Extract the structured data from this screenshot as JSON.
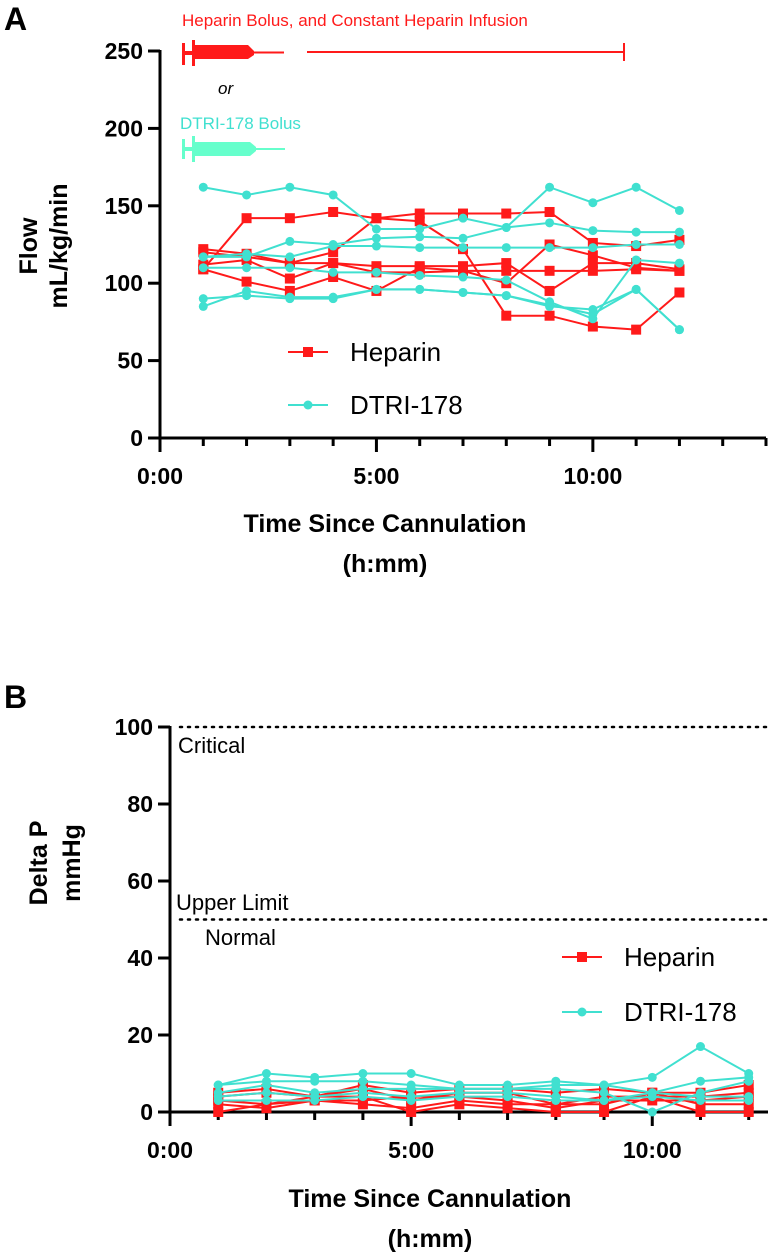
{
  "colors": {
    "heparin": "#ff1a1a",
    "dtri": "#40e0d0",
    "dtri_syringe": "#66ffcc",
    "axis": "#000000"
  },
  "chart_data": [
    {
      "panel": "A",
      "type": "line",
      "xlabel": "Time Since Cannulation",
      "xlabel_unit": "(h:mm)",
      "ylabel": "Flow",
      "ylabel_unit": "mL/kg/min",
      "x_ticks": [
        {
          "value": 0,
          "label": "0:00"
        },
        {
          "value": 5,
          "label": "5:00"
        },
        {
          "value": 10,
          "label": "10:00"
        }
      ],
      "y_ticks": [
        0,
        50,
        100,
        150,
        200,
        250
      ],
      "xlim": [
        0,
        14
      ],
      "ylim": [
        0,
        250
      ],
      "x": [
        1,
        2,
        3,
        4,
        5,
        6,
        7,
        8,
        9,
        10,
        11,
        12
      ],
      "legend": {
        "placement": "bottom-left",
        "entries": [
          "Heparin",
          "DTRI-178"
        ]
      },
      "annotations": {
        "heparin_text": "Heparin Bolus, and Constant Heparin Infusion",
        "or_text": "or",
        "dtri_text": "DTRI-178 Bolus",
        "infusion_end_hour": 12
      },
      "series": [
        {
          "group": "Heparin",
          "values": [
            109,
            142,
            142,
            146,
            142,
            145,
            145,
            145,
            146,
            126,
            124,
            128
          ]
        },
        {
          "group": "Heparin",
          "values": [
            122,
            119,
            113,
            113,
            111,
            111,
            111,
            113,
            95,
            113,
            113,
            109
          ]
        },
        {
          "group": "Heparin",
          "values": [
            120,
            117,
            113,
            120,
            142,
            140,
            122,
            79,
            79,
            72,
            70,
            94
          ]
        },
        {
          "group": "Heparin",
          "values": [
            112,
            115,
            103,
            113,
            107,
            107,
            108,
            100,
            125,
            118,
            110,
            108
          ]
        },
        {
          "group": "Heparin",
          "values": [
            109,
            101,
            95,
            104,
            95,
            110,
            108,
            108,
            108,
            108,
            109,
            108
          ]
        },
        {
          "group": "DTRI-178",
          "values": [
            162,
            157,
            162,
            157,
            135,
            135,
            142,
            136,
            162,
            152,
            162,
            147
          ]
        },
        {
          "group": "DTRI-178",
          "values": [
            117,
            117,
            127,
            125,
            129,
            130,
            129,
            136,
            139,
            134,
            133,
            133
          ]
        },
        {
          "group": "DTRI-178",
          "values": [
            117,
            119,
            117,
            124,
            124,
            123,
            123,
            123,
            123,
            123,
            125,
            125
          ]
        },
        {
          "group": "DTRI-178",
          "values": [
            110,
            110,
            110,
            107,
            107,
            105,
            104,
            102,
            88,
            77,
            115,
            113
          ]
        },
        {
          "group": "DTRI-178",
          "values": [
            85,
            95,
            91,
            91,
            96,
            96,
            94,
            92,
            85,
            83,
            96,
            70
          ]
        },
        {
          "group": "DTRI-178",
          "values": [
            90,
            92,
            90,
            90,
            96,
            96,
            94,
            92,
            86,
            80,
            96,
            70
          ]
        }
      ]
    },
    {
      "panel": "B",
      "type": "line",
      "xlabel": "Time Since Cannulation",
      "xlabel_unit": "(h:mm)",
      "ylabel": "Delta P",
      "ylabel_unit": "mmHg",
      "x_ticks": [
        {
          "value": 0,
          "label": "0:00"
        },
        {
          "value": 5,
          "label": "5:00"
        },
        {
          "value": 10,
          "label": "10:00"
        }
      ],
      "y_ticks": [
        0,
        20,
        40,
        60,
        80,
        100
      ],
      "xlim": [
        0,
        12.4
      ],
      "ylim": [
        0,
        100
      ],
      "x": [
        1,
        2,
        3,
        4,
        5,
        6,
        7,
        8,
        9,
        10,
        11,
        12
      ],
      "legend": {
        "placement": "right",
        "entries": [
          "Heparin",
          "DTRI-178"
        ]
      },
      "reference_lines": [
        {
          "value": 100,
          "labels": [
            "Critical"
          ]
        },
        {
          "value": 50,
          "labels": [
            "Upper Limit",
            "Normal"
          ]
        }
      ],
      "series": [
        {
          "group": "Heparin",
          "values": [
            5,
            6,
            4,
            7,
            5,
            6,
            6,
            5,
            6,
            5,
            5,
            7
          ]
        },
        {
          "group": "Heparin",
          "values": [
            4,
            5,
            4,
            6,
            3,
            5,
            5,
            2,
            4,
            4,
            4,
            5
          ]
        },
        {
          "group": "Heparin",
          "values": [
            3,
            2,
            3,
            3,
            4,
            4,
            3,
            1,
            3,
            3,
            3,
            4
          ]
        },
        {
          "group": "Heparin",
          "values": [
            2,
            1,
            3,
            2,
            1,
            3,
            2,
            2,
            2,
            5,
            2,
            2
          ]
        },
        {
          "group": "Heparin",
          "values": [
            0,
            2,
            4,
            4,
            0,
            2,
            1,
            0,
            0,
            4,
            0,
            0
          ]
        },
        {
          "group": "DTRI-178",
          "values": [
            7,
            10,
            9,
            10,
            10,
            7,
            7,
            8,
            7,
            9,
            17,
            10
          ]
        },
        {
          "group": "DTRI-178",
          "values": [
            7,
            8,
            8,
            8,
            7,
            6,
            6,
            7,
            7,
            5,
            8,
            9
          ]
        },
        {
          "group": "DTRI-178",
          "values": [
            5,
            7,
            5,
            6,
            6,
            6,
            6,
            6,
            5,
            0,
            5,
            8
          ]
        },
        {
          "group": "DTRI-178",
          "values": [
            4,
            5,
            4,
            5,
            4,
            5,
            5,
            4,
            3,
            5,
            4,
            4
          ]
        },
        {
          "group": "DTRI-178",
          "values": [
            3,
            3,
            3,
            4,
            3,
            4,
            4,
            3,
            3,
            4,
            3,
            3
          ]
        }
      ]
    }
  ],
  "panels": {
    "a_label": "A",
    "b_label": "B"
  }
}
